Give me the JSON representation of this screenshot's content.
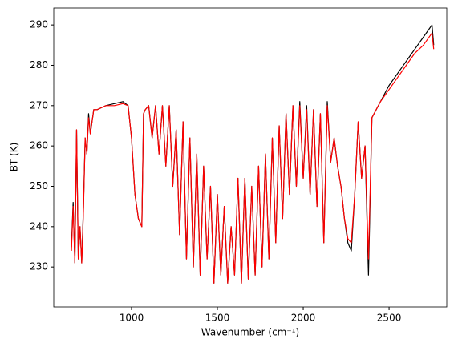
{
  "chart_data": {
    "type": "line",
    "xlabel": "Wavenumber (cm⁻¹)",
    "ylabel": "BT (K)",
    "x": [
      650,
      660,
      670,
      680,
      690,
      700,
      710,
      720,
      730,
      740,
      750,
      760,
      780,
      800,
      850,
      900,
      950,
      980,
      1000,
      1020,
      1040,
      1060,
      1070,
      1080,
      1100,
      1120,
      1140,
      1160,
      1180,
      1200,
      1220,
      1240,
      1260,
      1280,
      1300,
      1320,
      1340,
      1360,
      1380,
      1400,
      1420,
      1440,
      1460,
      1480,
      1500,
      1520,
      1540,
      1560,
      1580,
      1600,
      1620,
      1640,
      1660,
      1680,
      1700,
      1720,
      1740,
      1760,
      1780,
      1800,
      1820,
      1840,
      1860,
      1880,
      1900,
      1920,
      1940,
      1960,
      1980,
      2000,
      2020,
      2040,
      2060,
      2080,
      2100,
      2120,
      2140,
      2160,
      2180,
      2200,
      2220,
      2240,
      2260,
      2280,
      2300,
      2320,
      2340,
      2360,
      2380,
      2400,
      2450,
      2500,
      2550,
      2600,
      2650,
      2700,
      2750,
      2760
    ],
    "series": [
      {
        "name": "black",
        "color": "#000000",
        "values": [
          235,
          246,
          231,
          264,
          232,
          240,
          231,
          245,
          262,
          258,
          268,
          263,
          269,
          269,
          270,
          270.5,
          271,
          270,
          262,
          248,
          242,
          240,
          268,
          269,
          270,
          262,
          270,
          258,
          270,
          255,
          270,
          250,
          264,
          238,
          266,
          232,
          262,
          230,
          258,
          228,
          255,
          232,
          250,
          226,
          248,
          228,
          245,
          226,
          240,
          228,
          252,
          226,
          252,
          227,
          250,
          228,
          255,
          230,
          258,
          232,
          262,
          236,
          265,
          242,
          268,
          248,
          270,
          250,
          271,
          252,
          270,
          248,
          269,
          245,
          268,
          236,
          271,
          256,
          262,
          255,
          250,
          242,
          236,
          234,
          248,
          266,
          252,
          260,
          228,
          267,
          271,
          275,
          278,
          281,
          284,
          287,
          290,
          285
        ]
      },
      {
        "name": "red",
        "color": "#ff0000",
        "values": [
          234,
          245,
          231,
          264,
          232,
          240,
          231,
          244,
          262,
          258,
          267,
          263,
          269,
          269,
          270,
          270,
          270.5,
          270,
          262,
          248,
          242,
          240,
          268,
          269,
          270,
          262,
          270,
          258,
          270,
          255,
          270,
          250,
          264,
          238,
          266,
          232,
          262,
          230,
          258,
          228,
          255,
          232,
          250,
          226,
          248,
          228,
          245,
          226,
          240,
          228,
          252,
          226,
          252,
          227,
          250,
          228,
          255,
          230,
          258,
          232,
          262,
          236,
          265,
          242,
          268,
          248,
          270,
          250,
          270,
          252,
          269,
          248,
          269,
          245,
          268,
          236,
          270,
          256,
          262,
          255,
          250,
          242,
          237,
          236,
          248,
          266,
          252,
          260,
          232,
          267,
          271,
          274,
          277,
          280,
          283,
          285,
          288,
          284
        ]
      }
    ],
    "xlim": [
      547,
      2836
    ],
    "ylim": [
      220.1,
      294.2
    ],
    "xticks": [
      1000,
      1500,
      2000,
      2500
    ],
    "yticks": [
      230,
      240,
      250,
      260,
      270,
      280,
      290
    ]
  }
}
